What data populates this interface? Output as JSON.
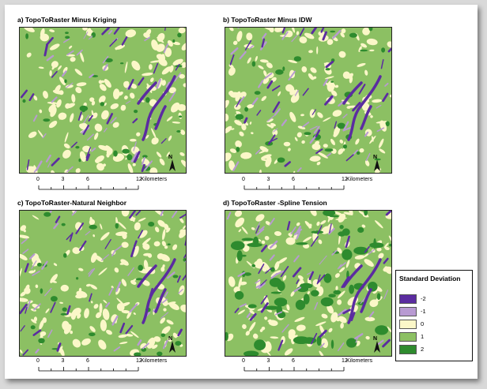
{
  "panels": [
    {
      "title": "a) TopoToRaster Minus Kriging"
    },
    {
      "title": "b) TopoToRaster Minus IDW"
    },
    {
      "title": "c) TopoToRaster-Natural Neighbor"
    },
    {
      "title": "d) TopoToRaster -Spline Tension"
    }
  ],
  "scalebar": {
    "ticks": [
      "0",
      "3",
      "6",
      "12"
    ],
    "units": "Kilometers"
  },
  "north_arrow": {
    "label": "N"
  },
  "legend": {
    "title": "Standard Deviation",
    "items": [
      {
        "label": "-2",
        "color": "#5b2ca0"
      },
      {
        "label": "-1",
        "color": "#b89ad2"
      },
      {
        "label": "0",
        "color": "#fbf7c8"
      },
      {
        "label": "1",
        "color": "#8cc063"
      },
      {
        "label": "2",
        "color": "#2e8b2e"
      }
    ]
  }
}
